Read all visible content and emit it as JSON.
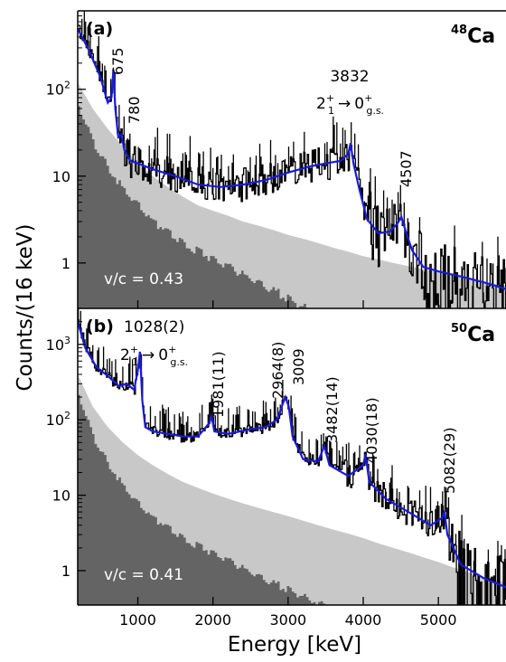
{
  "figure": {
    "ylabel": "Counts/(16 keV)",
    "xlabel": "Energy [keV]"
  },
  "chart_data": [
    {
      "type": "line",
      "panel_label": "(a)",
      "nucleus": {
        "mass": "48",
        "element": "Ca"
      },
      "note": "v/c = 0.43",
      "transition": {
        "energy": "3832",
        "level_initial": "2",
        "level_initial_sup": "+",
        "level_initial_sub": "1",
        "arrow": "→",
        "level_final": "0",
        "level_final_sup": "+",
        "level_final_sub": "g.s."
      },
      "peak_labels": [
        "675",
        "780",
        "4507"
      ],
      "peak_energies": [
        675,
        780,
        4507
      ],
      "x_ticks": [],
      "y_ticks": [
        "10^2",
        "10",
        "1"
      ],
      "y_scale": "log",
      "ylim": [
        0.3,
        800
      ],
      "xlim": [
        200,
        5900
      ],
      "series": [
        {
          "x": [
            200,
            350,
            500,
            600,
            650,
            675,
            700,
            740,
            780,
            820,
            900,
            1000,
            1200,
            1500,
            1800,
            2100,
            2400,
            2700,
            3000,
            3300,
            3500,
            3700,
            3800,
            3832,
            3870,
            3950,
            4050,
            4200,
            4350,
            4450,
            4507,
            4560,
            4650,
            4800,
            5000,
            5300,
            5600,
            5900
          ],
          "values": [
            500,
            280,
            140,
            70,
            80,
            170,
            60,
            28,
            30,
            20,
            15,
            14,
            12,
            10,
            8,
            7.5,
            8,
            9,
            11,
            13,
            14,
            15,
            18,
            24,
            14,
            7,
            3.2,
            2.2,
            2.3,
            2.8,
            3.4,
            2.4,
            1.4,
            0.9,
            0.8,
            0.7,
            0.6,
            0.5
          ]
        },
        {
          "x": [
            200,
            400,
            600,
            800,
            1000,
            1200,
            1400,
            1600,
            1800,
            2000,
            2200,
            2400,
            2600,
            2800,
            3000,
            3200,
            3400,
            3600,
            3800,
            4000,
            4200,
            4400,
            4600,
            4800,
            5000,
            5200,
            5400,
            5600,
            5900
          ],
          "values": [
            120,
            60,
            35,
            22,
            14,
            10,
            7.5,
            5.8,
            4.6,
            4.0,
            3.5,
            3.0,
            2.7,
            2.4,
            2.1,
            1.9,
            1.7,
            1.5,
            1.35,
            1.2,
            1.1,
            1.0,
            0.92,
            0.85,
            0.78,
            0.72,
            0.66,
            0.6,
            0.55
          ]
        },
        {
          "x": [
            200,
            400,
            600,
            800,
            1000,
            1200,
            1400,
            1600,
            1800,
            2000,
            2200,
            2400,
            2600,
            2800,
            3000,
            3200,
            3300
          ],
          "values": [
            60,
            25,
            12,
            7,
            4.5,
            3.0,
            2.2,
            1.7,
            1.35,
            1.1,
            0.9,
            0.72,
            0.6,
            0.48,
            0.38,
            0.31,
            0.28
          ]
        }
      ]
    },
    {
      "type": "line",
      "panel_label": "(b)",
      "nucleus": {
        "mass": "50",
        "element": "Ca"
      },
      "note": "v/c = 0.41",
      "transition": {
        "energy": "1028(2)",
        "level_initial": "2",
        "level_initial_sup": "+",
        "level_initial_sub": "1",
        "arrow": "→",
        "level_final": "0",
        "level_final_sup": "+",
        "level_final_sub": "g.s."
      },
      "peak_labels": [
        "1981(11)",
        "2964(8)",
        "3009",
        "3482(14)",
        "4030(18)",
        "5082(29)"
      ],
      "peak_energies": [
        1981,
        2964,
        3009,
        3482,
        4030,
        5082
      ],
      "x_ticks": [
        "1000",
        "2000",
        "3000",
        "4000",
        "5000"
      ],
      "y_ticks": [
        "10^3",
        "10^2",
        "10",
        "1"
      ],
      "y_scale": "log",
      "ylim": [
        0.35,
        3000
      ],
      "xlim": [
        200,
        5900
      ],
      "series": [
        {
          "x": [
            200,
            300,
            450,
            600,
            750,
            850,
            950,
            1000,
            1028,
            1060,
            1100,
            1200,
            1400,
            1600,
            1800,
            1950,
            1981,
            2020,
            2200,
            2500,
            2700,
            2850,
            2964,
            3009,
            3060,
            3200,
            3400,
            3482,
            3550,
            3800,
            4000,
            4030,
            4080,
            4300,
            4600,
            4900,
            5050,
            5082,
            5120,
            5300,
            5600,
            5900
          ],
          "values": [
            2000,
            900,
            500,
            380,
            280,
            300,
            250,
            450,
            800,
            180,
            80,
            70,
            65,
            60,
            60,
            90,
            110,
            70,
            65,
            75,
            80,
            100,
            200,
            150,
            60,
            30,
            28,
            45,
            25,
            18,
            25,
            35,
            15,
            9,
            6,
            4,
            5,
            6,
            3,
            1.2,
            0.8,
            0.6
          ]
        },
        {
          "x": [
            200,
            400,
            600,
            800,
            1000,
            1200,
            1400,
            1600,
            1800,
            2000,
            2200,
            2400,
            2600,
            2800,
            3000,
            3200,
            3400,
            3600,
            3800,
            4000,
            4200,
            4400,
            4600,
            4800,
            5000,
            5200,
            5400,
            5600,
            5900
          ],
          "values": [
            400,
            150,
            80,
            50,
            34,
            25,
            19,
            15,
            12.5,
            10.5,
            9.0,
            7.8,
            6.8,
            6.0,
            5.3,
            4.6,
            4.0,
            3.5,
            3.1,
            2.7,
            2.3,
            2.0,
            1.75,
            1.5,
            1.3,
            1.1,
            0.95,
            0.82,
            0.7
          ]
        },
        {
          "x": [
            200,
            400,
            600,
            800,
            1000,
            1200,
            1400,
            1600,
            1800,
            2000,
            2200,
            2400,
            2600,
            2800,
            3000,
            3200,
            3400,
            3500
          ],
          "values": [
            200,
            60,
            25,
            13,
            7.5,
            5.0,
            3.6,
            2.7,
            2.1,
            1.7,
            1.35,
            1.05,
            0.85,
            0.68,
            0.55,
            0.45,
            0.38,
            0.35
          ]
        }
      ]
    }
  ],
  "colors": {
    "fit": "#1a1adb",
    "data": "#000000",
    "bg_light": "#c8c8c8",
    "bg_dark": "#646464"
  }
}
